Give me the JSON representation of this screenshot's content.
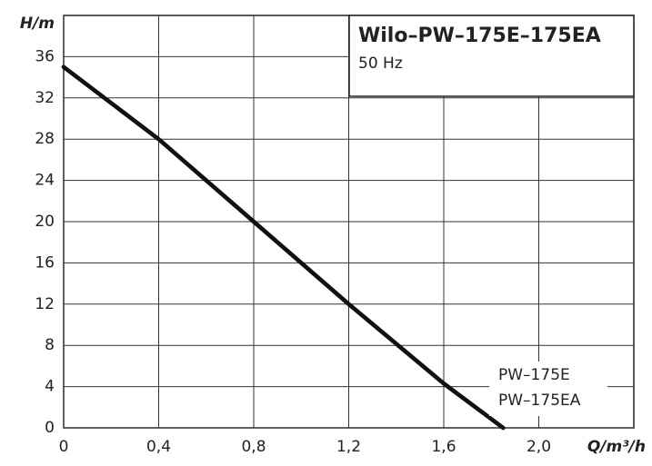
{
  "chart_data": {
    "type": "line",
    "title": "Wilo–PW–175E–175EA",
    "subtitle": "50 Hz",
    "y_label": "H/m",
    "x_label": "Q/m³/h",
    "x": [
      0,
      0.4,
      0.8,
      1.2,
      1.6,
      1.85
    ],
    "series": [
      {
        "name": "PW–175E",
        "color": "#111111",
        "values": [
          35,
          28,
          20,
          12,
          4.3,
          0
        ]
      },
      {
        "name": "PW–175EA",
        "color": "#111111",
        "values": [
          35,
          28,
          20,
          12,
          4.3,
          0
        ]
      }
    ],
    "xlim": [
      0,
      2.4
    ],
    "xticks": [
      0,
      {
        "value": 0.4,
        "label": "0,4"
      },
      {
        "value": 0.8,
        "label": "0,8"
      },
      {
        "value": 1.2,
        "label": "1,2"
      },
      {
        "value": 1.6,
        "label": "1,6"
      },
      {
        "value": 2.0,
        "label": "2,0"
      }
    ],
    "ylim": [
      0,
      40
    ],
    "yticks": [
      0,
      4,
      8,
      12,
      16,
      20,
      24,
      28,
      32,
      36
    ],
    "grid": true
  }
}
